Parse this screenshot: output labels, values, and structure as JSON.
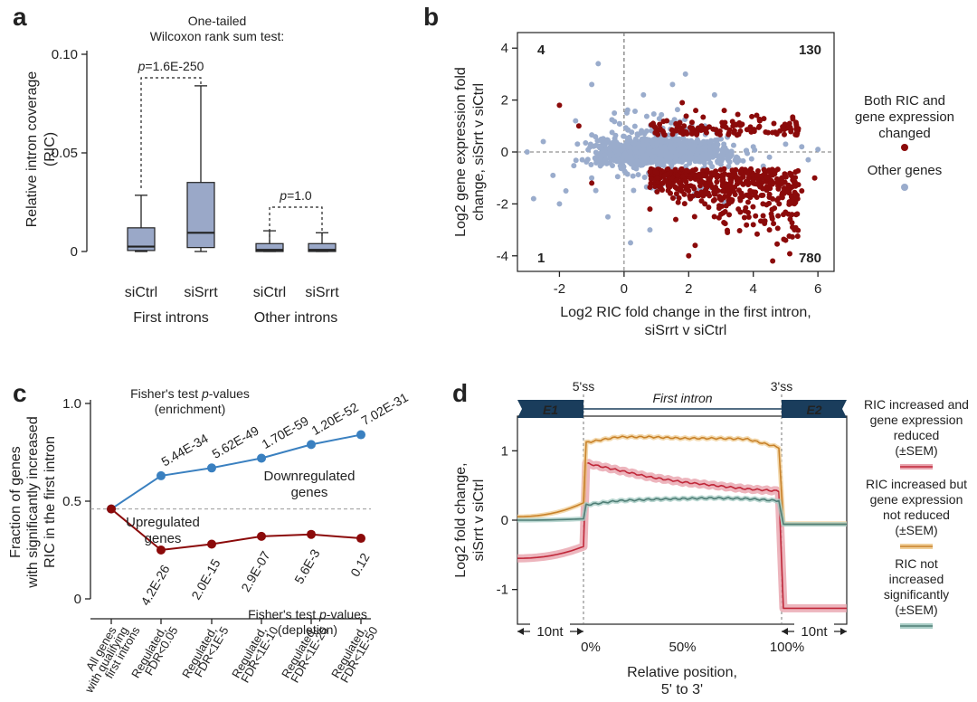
{
  "panel_letters": [
    "a",
    "b",
    "c",
    "d"
  ],
  "colors": {
    "box_fill": "#9aa8c8",
    "dark_red": "#8b0a0a",
    "grey_blue": "#9aaccc",
    "blue_line": "#3a80c0",
    "orange_line": "#c8822a",
    "teal_line": "#4f7e76",
    "red_line": "#c0283a",
    "exon_box": "#1a3d5c"
  },
  "chart_data": [
    {
      "id": "a",
      "type": "box",
      "title": "One-tailed\nWilcoxon rank sum test:",
      "title_lines": [
        "One-tailed",
        "Wilcoxon rank sum test:"
      ],
      "ylabel": "Relative intron coverage\n(RIC)",
      "ylabel_lines": [
        "Relative intron coverage",
        "(RIC)"
      ],
      "ylim": [
        0,
        0.1
      ],
      "yticks": [
        "0",
        "0.05",
        "0.10"
      ],
      "ytick_values": [
        0,
        0.05,
        0.1
      ],
      "groups": [
        "First introns",
        "Other introns"
      ],
      "categories": [
        "siCtrl",
        "siSrrt",
        "siCtrl",
        "siSrrt"
      ],
      "boxes": [
        {
          "whisker_low": 0.0,
          "q1": 0.0005,
          "median": 0.0025,
          "q3": 0.012,
          "whisker_high": 0.0285
        },
        {
          "whisker_low": 0.0,
          "q1": 0.002,
          "median": 0.0095,
          "q3": 0.035,
          "whisker_high": 0.084
        },
        {
          "whisker_low": 0.0,
          "q1": 0.0,
          "median": 0.0008,
          "q3": 0.004,
          "whisker_high": 0.0105
        },
        {
          "whisker_low": 0.0,
          "q1": 0.0,
          "median": 0.0008,
          "q3": 0.004,
          "whisker_high": 0.0095
        }
      ],
      "annotations": [
        {
          "prefix": "p",
          "text": "=1.6E-250",
          "pair": [
            0,
            1
          ]
        },
        {
          "prefix": "p",
          "text": "=1.0",
          "pair": [
            2,
            3
          ]
        }
      ]
    },
    {
      "id": "b",
      "type": "scatter",
      "xlabel": "Log2 RIC fold change in the first intron,\nsiSrrt v siCtrl",
      "xlabel_lines": [
        "Log2 RIC fold change in the first intron,",
        "siSrrt v siCtrl"
      ],
      "ylabel": "Log2 gene expression fold\nchange, siSrrt v siCtrl",
      "ylabel_lines": [
        "Log2 gene expression fold",
        "change, siSrrt v siCtrl"
      ],
      "xlim": [
        -3.3,
        6.5
      ],
      "ylim": [
        -4.6,
        4.6
      ],
      "xticks": [
        "-2",
        "0",
        "2",
        "4",
        "6"
      ],
      "xtick_values": [
        -2,
        0,
        2,
        4,
        6
      ],
      "yticks": [
        "-4",
        "-2",
        "0",
        "2",
        "4"
      ],
      "ytick_values": [
        -4,
        -2,
        0,
        2,
        4
      ],
      "quadrant_counts": [
        "4",
        "130",
        "1",
        "780"
      ],
      "legend": [
        "Both RIC and\ngene expression\nchanged",
        "Other genes"
      ],
      "legend_lines": [
        [
          "Both RIC and",
          "gene expression",
          "changed"
        ],
        [
          "Other genes"
        ]
      ],
      "series": [
        {
          "name": "Both RIC and gene expression changed",
          "color": "#8b0a0a",
          "points": [
            [
              1.0,
              -0.8
            ],
            [
              1.4,
              -1.2
            ],
            [
              2.0,
              -1.5
            ],
            [
              2.5,
              -2.0
            ],
            [
              3.0,
              -2.4
            ],
            [
              3.5,
              -1.1
            ],
            [
              4.0,
              -2.8
            ],
            [
              4.5,
              -3.0
            ],
            [
              5.0,
              -3.4
            ],
            [
              2.2,
              -3.6
            ],
            [
              3.2,
              -3.1
            ],
            [
              1.6,
              -2.6
            ],
            [
              4.8,
              -2.0
            ],
            [
              5.5,
              -1.5
            ],
            [
              2.9,
              -0.9
            ],
            [
              3.8,
              -0.8
            ],
            [
              1.2,
              0.8
            ],
            [
              2.4,
              1.0
            ],
            [
              3.1,
              1.6
            ],
            [
              4.2,
              1.2
            ],
            [
              1.8,
              1.9
            ],
            [
              0.9,
              1.1
            ],
            [
              3.6,
              0.8
            ],
            [
              -1.4,
              1.0
            ],
            [
              -2.0,
              1.8
            ],
            [
              -1.0,
              -1.2
            ],
            [
              2.0,
              -4.0
            ],
            [
              4.6,
              -4.2
            ],
            [
              5.9,
              -1.0
            ],
            [
              0.8,
              -2.2
            ]
          ]
        },
        {
          "name": "Other genes",
          "color": "#9aaccc",
          "points": [
            [
              -3.0,
              0.0
            ],
            [
              -2.5,
              0.4
            ],
            [
              -2.2,
              -0.9
            ],
            [
              -1.8,
              -1.5
            ],
            [
              -1.5,
              1.2
            ],
            [
              -1.0,
              2.6
            ],
            [
              -0.8,
              3.4
            ],
            [
              -0.5,
              -2.5
            ],
            [
              0.0,
              0.6
            ],
            [
              0.3,
              -0.6
            ],
            [
              0.6,
              2.2
            ],
            [
              0.8,
              -3.0
            ],
            [
              1.0,
              -1.5
            ],
            [
              1.5,
              2.6
            ],
            [
              2.0,
              0.4
            ],
            [
              2.5,
              -0.3
            ],
            [
              3.0,
              0.5
            ],
            [
              3.5,
              -0.4
            ],
            [
              4.0,
              0.2
            ],
            [
              4.5,
              -0.2
            ],
            [
              5.0,
              0.3
            ],
            [
              5.5,
              0.2
            ],
            [
              6.0,
              0.1
            ],
            [
              2.8,
              2.2
            ],
            [
              1.9,
              3.0
            ],
            [
              -2.8,
              -1.8
            ],
            [
              -2.0,
              -2.0
            ],
            [
              0.2,
              -3.5
            ],
            [
              5.7,
              -0.3
            ],
            [
              -0.3,
              1.5
            ]
          ]
        }
      ]
    },
    {
      "id": "c",
      "type": "line",
      "ylabel": "Fraction of genes\nwith significantly increased\nRIC in the first intron",
      "ylabel_lines": [
        "Fraction of genes",
        "with significantly increased",
        "RIC in the first intron"
      ],
      "ylim": [
        0,
        1.0
      ],
      "yticks": [
        "0",
        "0.5",
        "1.0"
      ],
      "ytick_values": [
        0,
        0.5,
        1.0
      ],
      "categories": [
        "All genes\nwith qualifying\nfirst introns",
        "Regulated,\nFDR<0.05",
        "Regulated,\nFDR<1E-5",
        "Regulated,\nFDR<1E-10",
        "Regulated,\nFDR<1E-25",
        "Regulated,\nFDR<1E-50"
      ],
      "category_lines": [
        [
          "All genes",
          "with qualifying",
          "first introns"
        ],
        [
          "Regulated,",
          "FDR<0.05"
        ],
        [
          "Regulated,",
          "FDR<1E-5"
        ],
        [
          "Regulated,",
          "FDR<1E-10"
        ],
        [
          "Regulated,",
          "FDR<1E-25"
        ],
        [
          "Regulated,",
          "FDR<1E-50"
        ]
      ],
      "baseline": 0.46,
      "enrichment_header": [
        "Fisher's test ",
        "p",
        "-values",
        "(enrichment)"
      ],
      "depletion_header": [
        "Fisher's test ",
        "p",
        "-values",
        "(depletion)"
      ],
      "series": [
        {
          "name": "Downregulated\ngenes",
          "name_lines": [
            "Downregulated",
            "genes"
          ],
          "color": "#3a80c0",
          "values": [
            0.46,
            0.63,
            0.67,
            0.72,
            0.79,
            0.84
          ],
          "pvalues": [
            "5.44E-34",
            "5.62E-49",
            "1.70E-59",
            "1.20E-52",
            "7.02E-31"
          ]
        },
        {
          "name": "Upregulated\ngenes",
          "name_lines": [
            "Upregulated",
            "genes"
          ],
          "color": "#8b0a0a",
          "values": [
            0.46,
            0.25,
            0.28,
            0.32,
            0.33,
            0.31
          ],
          "pvalues": [
            "4.2E-26",
            "2.0E-15",
            "2.9E-07",
            "5.6E-3",
            "0.12"
          ]
        }
      ]
    },
    {
      "id": "d",
      "type": "line",
      "ylabel": "Log2 fold change,\nsiSrrt v siCtrl",
      "ylabel_lines": [
        "Log2 fold change,",
        "siSrrt v siCtrl"
      ],
      "xlabel": "Relative position,\n5' to 3'",
      "xlabel_lines": [
        "Relative position,",
        "5' to 3'"
      ],
      "ylim": [
        -1.5,
        1.5
      ],
      "yticks": [
        "-1",
        "0",
        "1"
      ],
      "ytick_values": [
        -1,
        0,
        1
      ],
      "xticks": [
        "0%",
        "50%",
        "100%"
      ],
      "gene_model": {
        "exon1": "E1",
        "intron": "First intron",
        "exon2": "E2",
        "ss5": "5'ss",
        "ss3": "3'ss"
      },
      "flank_labels": [
        "10nt",
        "10nt"
      ],
      "legend": [
        {
          "lines": [
            "RIC increased and",
            "gene expression",
            "reduced",
            "(±SEM)"
          ],
          "color": "#c0283a"
        },
        {
          "lines": [
            "RIC increased but",
            "gene expression",
            "not reduced",
            "(±SEM)"
          ],
          "color": "#c8822a"
        },
        {
          "lines": [
            "RIC not",
            "increased",
            "significantly",
            "(±SEM)"
          ],
          "color": "#4f7e76"
        }
      ],
      "series": [
        {
          "name": "RIC increased and gene expression reduced",
          "color": "#c0283a",
          "exon1": [
            -0.55,
            -0.38
          ],
          "intron": [
            0.82,
            0.72,
            0.62,
            0.55,
            0.5,
            0.45,
            0.42
          ],
          "exon2": [
            -1.27,
            -1.27
          ]
        },
        {
          "name": "RIC increased but gene expression not reduced",
          "color": "#c8822a",
          "exon1": [
            0.05,
            0.25
          ],
          "intron": [
            1.12,
            1.2,
            1.2,
            1.18,
            1.18,
            1.17,
            1.05
          ],
          "exon2": [
            -0.05,
            -0.05
          ]
        },
        {
          "name": "RIC not increased significantly",
          "color": "#4f7e76",
          "exon1": [
            0.0,
            0.02
          ],
          "intron": [
            0.22,
            0.28,
            0.3,
            0.31,
            0.32,
            0.31,
            0.28
          ],
          "exon2": [
            -0.06,
            -0.06
          ]
        }
      ]
    }
  ]
}
